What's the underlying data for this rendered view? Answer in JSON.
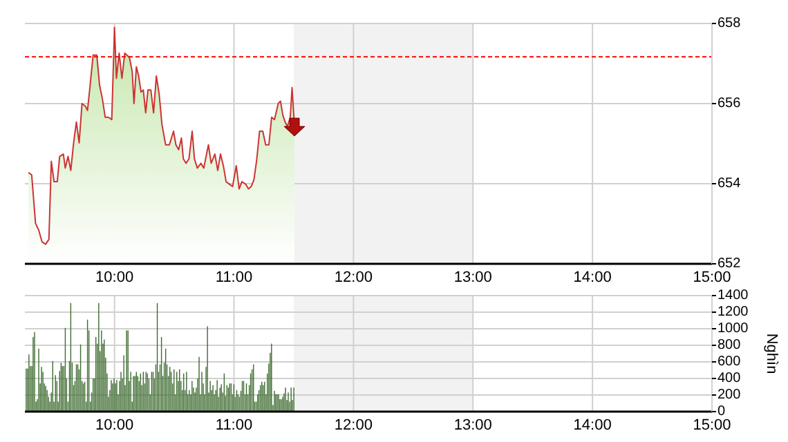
{
  "chart_data": [
    {
      "type": "area",
      "color": "#cc3333",
      "grid": true,
      "xlim": [
        9.25,
        15
      ],
      "xticks": [
        {
          "value": 10,
          "label": "10:00"
        },
        {
          "value": 11,
          "label": "11:00"
        },
        {
          "value": 12,
          "label": "12:00"
        },
        {
          "value": 13,
          "label": "13:00"
        },
        {
          "value": 14,
          "label": "14:00"
        },
        {
          "value": 15,
          "label": "15:00"
        }
      ],
      "ylim": [
        652,
        658
      ],
      "yticks": [
        652,
        654,
        656,
        658
      ],
      "ref_lines": [
        {
          "axis": "y",
          "value": 657.17,
          "color": "#ff0000",
          "line_style": "dashed"
        }
      ],
      "bands": [
        {
          "axis": "x",
          "from": 11.5,
          "to": 13,
          "color": "#f2f2f2"
        }
      ],
      "x": [
        9.28,
        9.307,
        9.339,
        9.366,
        9.393,
        9.424,
        9.451,
        9.471,
        9.494,
        9.521,
        9.541,
        9.572,
        9.588,
        9.611,
        9.634,
        9.658,
        9.681,
        9.704,
        9.728,
        9.755,
        9.774,
        9.794,
        9.821,
        9.852,
        9.875,
        9.899,
        9.922,
        9.949,
        9.977,
        10.0,
        10.016,
        10.039,
        10.062,
        10.086,
        10.125,
        10.148,
        10.163,
        10.183,
        10.202,
        10.222,
        10.241,
        10.261,
        10.28,
        10.304,
        10.327,
        10.35,
        10.374,
        10.397,
        10.428,
        10.459,
        10.494,
        10.514,
        10.537,
        10.56,
        10.576,
        10.599,
        10.623,
        10.65,
        10.669,
        10.693,
        10.724,
        10.747,
        10.786,
        10.809,
        10.84,
        10.864,
        10.887,
        10.911,
        10.934,
        10.961,
        10.988,
        11.019,
        11.043,
        11.066,
        11.097,
        11.121,
        11.144,
        11.167,
        11.191,
        11.214,
        11.241,
        11.265,
        11.292,
        11.315,
        11.339,
        11.37,
        11.389,
        11.409,
        11.428,
        11.447,
        11.471,
        11.486,
        11.506
      ],
      "values": [
        654.28,
        654.22,
        653.01,
        652.84,
        652.55,
        652.49,
        652.61,
        654.56,
        654.05,
        654.05,
        654.68,
        654.74,
        654.39,
        654.68,
        654.33,
        655.02,
        655.54,
        655.02,
        656.0,
        655.94,
        655.83,
        656.4,
        657.21,
        657.21,
        656.46,
        656.11,
        655.66,
        655.66,
        655.6,
        657.9,
        656.63,
        657.26,
        656.63,
        657.26,
        657.15,
        656.8,
        656.0,
        656.92,
        656.69,
        656.29,
        656.34,
        655.77,
        656.34,
        656.34,
        655.77,
        656.69,
        656.23,
        655.48,
        654.97,
        654.97,
        655.31,
        654.97,
        654.85,
        655.14,
        654.62,
        654.51,
        654.62,
        655.31,
        654.62,
        654.39,
        654.51,
        654.39,
        654.97,
        654.51,
        654.74,
        654.33,
        654.74,
        654.45,
        654.05,
        653.99,
        653.93,
        654.45,
        653.87,
        654.05,
        653.99,
        653.87,
        653.93,
        654.1,
        654.62,
        655.31,
        655.31,
        654.97,
        654.97,
        655.66,
        655.6,
        656.0,
        656.06,
        655.71,
        655.54,
        655.43,
        655.66,
        656.4,
        655.43
      ]
    },
    {
      "type": "bar",
      "color": "#3d6b2f",
      "grid": true,
      "ylabel": "Nghìn",
      "xlim": [
        9.25,
        15
      ],
      "xticks": [
        {
          "value": 10,
          "label": "10:00"
        },
        {
          "value": 11,
          "label": "11:00"
        },
        {
          "value": 12,
          "label": "12:00"
        },
        {
          "value": 13,
          "label": "13:00"
        },
        {
          "value": 14,
          "label": "14:00"
        },
        {
          "value": 15,
          "label": "15:00"
        }
      ],
      "ylim": [
        0,
        1400
      ],
      "yticks": [
        0,
        200,
        400,
        600,
        800,
        1000,
        1200,
        1400
      ],
      "bands": [
        {
          "axis": "x",
          "from": 11.5,
          "to": 13,
          "color": "#f2f2f2"
        }
      ],
      "x": [
        9.261,
        9.273,
        9.284,
        9.296,
        9.308,
        9.319,
        9.331,
        9.343,
        9.354,
        9.366,
        9.378,
        9.389,
        9.401,
        9.413,
        9.424,
        9.436,
        9.448,
        9.459,
        9.471,
        9.483,
        9.494,
        9.506,
        9.518,
        9.529,
        9.541,
        9.553,
        9.564,
        9.576,
        9.588,
        9.599,
        9.611,
        9.623,
        9.634,
        9.646,
        9.658,
        9.669,
        9.681,
        9.693,
        9.704,
        9.716,
        9.728,
        9.739,
        9.751,
        9.763,
        9.774,
        9.786,
        9.798,
        9.809,
        9.821,
        9.833,
        9.844,
        9.856,
        9.868,
        9.879,
        9.891,
        9.903,
        9.914,
        9.926,
        9.938,
        9.949,
        9.961,
        9.973,
        9.984,
        9.996,
        10.008,
        10.019,
        10.031,
        10.043,
        10.054,
        10.066,
        10.078,
        10.089,
        10.101,
        10.113,
        10.124,
        10.136,
        10.148,
        10.159,
        10.171,
        10.183,
        10.194,
        10.206,
        10.218,
        10.229,
        10.241,
        10.253,
        10.264,
        10.276,
        10.288,
        10.299,
        10.311,
        10.323,
        10.334,
        10.346,
        10.358,
        10.369,
        10.381,
        10.393,
        10.404,
        10.416,
        10.428,
        10.439,
        10.451,
        10.463,
        10.474,
        10.486,
        10.498,
        10.509,
        10.521,
        10.533,
        10.544,
        10.556,
        10.568,
        10.579,
        10.591,
        10.603,
        10.614,
        10.626,
        10.638,
        10.649,
        10.661,
        10.673,
        10.684,
        10.696,
        10.708,
        10.719,
        10.731,
        10.743,
        10.754,
        10.766,
        10.778,
        10.789,
        10.801,
        10.813,
        10.824,
        10.836,
        10.848,
        10.859,
        10.871,
        10.883,
        10.894,
        10.906,
        10.918,
        10.929,
        10.941,
        10.953,
        10.964,
        10.976,
        10.988,
        10.999,
        11.011,
        11.023,
        11.034,
        11.046,
        11.058,
        11.069,
        11.081,
        11.093,
        11.104,
        11.116,
        11.128,
        11.139,
        11.151,
        11.163,
        11.174,
        11.186,
        11.198,
        11.209,
        11.221,
        11.233,
        11.244,
        11.256,
        11.268,
        11.279,
        11.291,
        11.303,
        11.314,
        11.326,
        11.338,
        11.349,
        11.361,
        11.373,
        11.384,
        11.396,
        11.408,
        11.419,
        11.431,
        11.443,
        11.454,
        11.466,
        11.478,
        11.489,
        11.501
      ],
      "values": [
        520,
        520,
        690,
        550,
        550,
        900,
        960,
        120,
        150,
        760,
        340,
        540,
        480,
        340,
        310,
        260,
        180,
        120,
        230,
        610,
        120,
        440,
        370,
        120,
        490,
        590,
        550,
        550,
        1010,
        400,
        120,
        610,
        1310,
        590,
        320,
        370,
        570,
        570,
        510,
        810,
        370,
        340,
        360,
        120,
        1110,
        980,
        120,
        230,
        400,
        400,
        900,
        820,
        1310,
        730,
        980,
        820,
        870,
        650,
        460,
        180,
        260,
        380,
        340,
        400,
        340,
        380,
        210,
        370,
        480,
        400,
        680,
        320,
        980,
        980,
        370,
        480,
        120,
        430,
        430,
        480,
        430,
        370,
        460,
        320,
        480,
        340,
        480,
        460,
        400,
        210,
        480,
        480,
        400,
        570,
        1310,
        480,
        570,
        900,
        430,
        590,
        760,
        570,
        430,
        540,
        480,
        340,
        510,
        210,
        480,
        370,
        510,
        370,
        260,
        460,
        260,
        480,
        210,
        260,
        210,
        370,
        290,
        230,
        290,
        400,
        660,
        210,
        480,
        340,
        210,
        540,
        1030,
        230,
        370,
        260,
        320,
        210,
        260,
        380,
        180,
        290,
        330,
        230,
        460,
        190,
        320,
        290,
        340,
        340,
        210,
        330,
        180,
        260,
        210,
        180,
        250,
        370,
        370,
        210,
        340,
        210,
        320,
        460,
        510,
        570,
        120,
        120,
        210,
        260,
        320,
        360,
        320,
        360,
        210,
        460,
        580,
        710,
        820,
        80,
        250,
        210,
        210,
        210,
        150,
        150,
        180,
        220,
        290,
        140,
        230,
        120,
        290,
        140,
        290
      ]
    }
  ]
}
